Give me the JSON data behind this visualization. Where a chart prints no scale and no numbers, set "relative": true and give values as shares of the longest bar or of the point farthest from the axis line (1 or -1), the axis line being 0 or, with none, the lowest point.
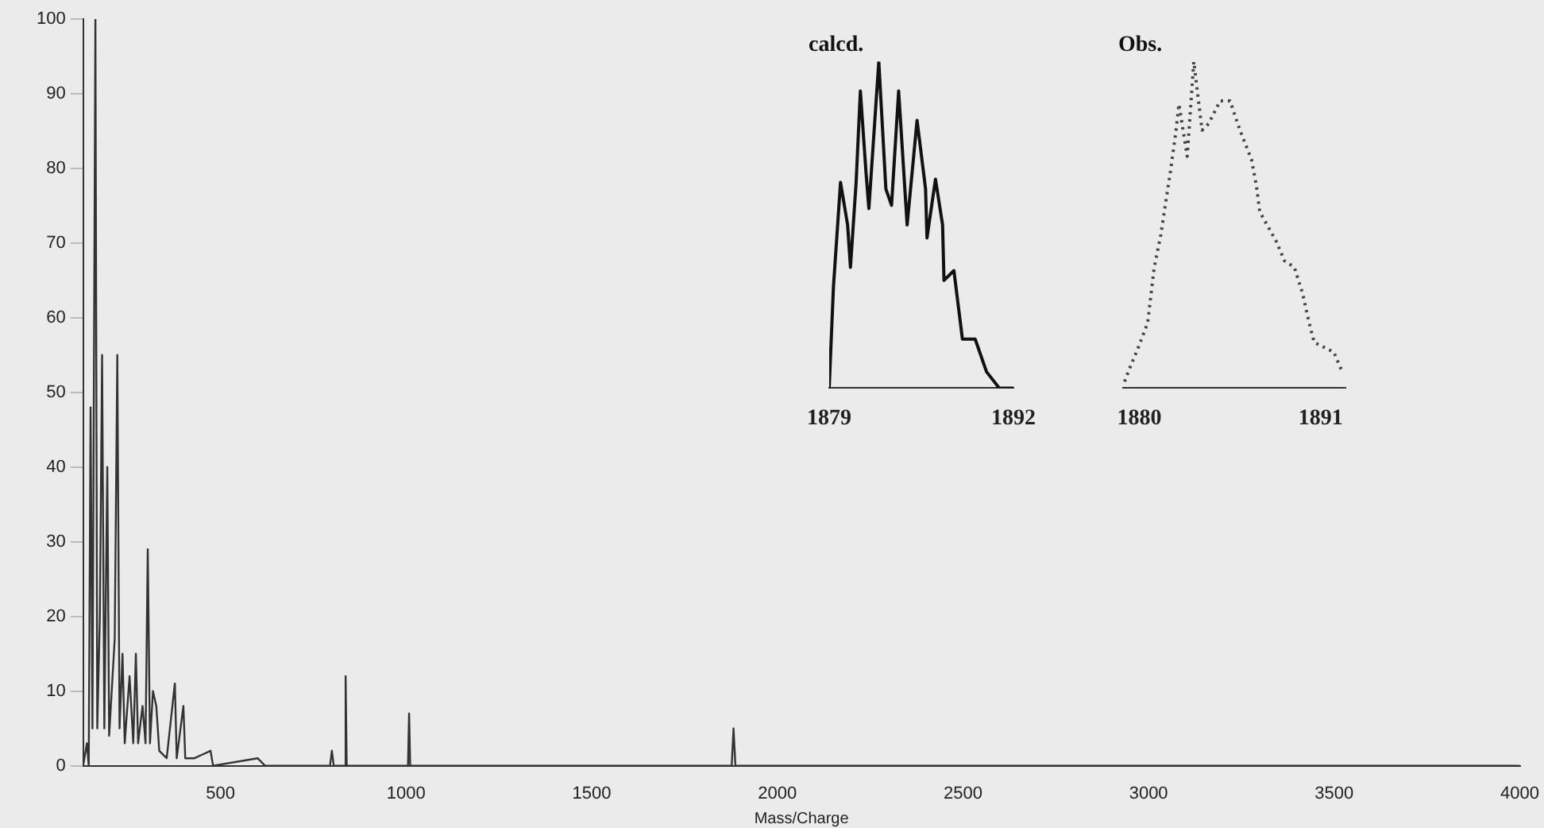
{
  "chart_data": [
    {
      "type": "line",
      "xlabel": "Mass/Charge",
      "xlim": [
        130,
        4000
      ],
      "xticks": [
        500,
        1000,
        1500,
        2000,
        2500,
        3000,
        3500,
        4000
      ],
      "ylim": [
        0,
        100
      ],
      "yticks": [
        0,
        10,
        20,
        30,
        40,
        50,
        60,
        70,
        80,
        90,
        100
      ],
      "grid": false,
      "legend": false,
      "marker": "none",
      "line_style": "solid",
      "x": [
        130,
        140,
        145,
        150,
        155,
        163,
        168,
        175,
        181,
        187,
        195,
        200,
        215,
        222,
        228,
        236,
        242,
        255,
        265,
        272,
        278,
        290,
        298,
        304,
        310,
        318,
        327,
        335,
        355,
        377,
        382,
        400,
        405,
        430,
        473,
        480,
        600,
        620,
        795,
        800,
        805,
        835,
        837,
        840,
        1005,
        1008,
        1011,
        1877,
        1882,
        1887,
        4000
      ],
      "series": [
        {
          "color": "#333333",
          "values": [
            0,
            3,
            0,
            48,
            5,
            100,
            5,
            20,
            55,
            5,
            40,
            4,
            17,
            55,
            5,
            15,
            3,
            12,
            3,
            15,
            3,
            8,
            3,
            29,
            3,
            10,
            8,
            2,
            1,
            11,
            1,
            8,
            1,
            1,
            2,
            0,
            1,
            0,
            0,
            2,
            0,
            0,
            12,
            0,
            0,
            7,
            0,
            0,
            5,
            0,
            0
          ]
        }
      ]
    },
    {
      "type": "line",
      "title": "calcd.",
      "relative": true,
      "tick_labels": "x",
      "xlim": [
        1879,
        1892
      ],
      "xticks": [
        1879,
        1892
      ],
      "grid": false,
      "legend": false,
      "marker": "none",
      "line_style": "solid",
      "x": [
        1879,
        1879.3,
        1879.8,
        1880.3,
        1880.5,
        1880.9,
        1881.2,
        1881.6,
        1881.8,
        1882.5,
        1883,
        1883.4,
        1883.9,
        1884.5,
        1885.2,
        1885.8,
        1885.9,
        1886.5,
        1887,
        1887.1,
        1887.8,
        1888.4,
        1889.3,
        1890.1,
        1891,
        1892
      ],
      "series": [
        {
          "color": "#111111",
          "values": [
            0,
            0.31,
            0.63,
            0.5,
            0.37,
            0.63,
            0.91,
            0.66,
            0.55,
            1,
            0.61,
            0.56,
            0.91,
            0.5,
            0.82,
            0.61,
            0.46,
            0.64,
            0.5,
            0.33,
            0.36,
            0.15,
            0.15,
            0.05,
            0,
            0
          ]
        }
      ]
    },
    {
      "type": "line",
      "title": "Obs.",
      "relative": true,
      "tick_labels": "x",
      "xlim": [
        1879,
        1892.5
      ],
      "xticks": [
        1880,
        1891
      ],
      "grid": false,
      "legend": false,
      "marker": "none",
      "line_style": "dotted",
      "x": [
        1879.1,
        1879.4,
        1879.9,
        1880.5,
        1880.9,
        1881.3,
        1881.9,
        1882.2,
        1882.4,
        1882.9,
        1883.3,
        1883.8,
        1884.2,
        1884.9,
        1885.5,
        1886.1,
        1886.8,
        1887.1,
        1887.3,
        1888.3,
        1888.8,
        1889.4,
        1889.9,
        1890.3,
        1890.6,
        1891.8,
        1892.3
      ],
      "series": [
        {
          "color": "#444444",
          "values": [
            0.02,
            0.06,
            0.12,
            0.2,
            0.37,
            0.47,
            0.67,
            0.78,
            0.87,
            0.71,
            1,
            0.79,
            0.81,
            0.88,
            0.88,
            0.79,
            0.7,
            0.62,
            0.54,
            0.45,
            0.39,
            0.37,
            0.29,
            0.2,
            0.14,
            0.11,
            0.05
          ]
        }
      ]
    }
  ]
}
